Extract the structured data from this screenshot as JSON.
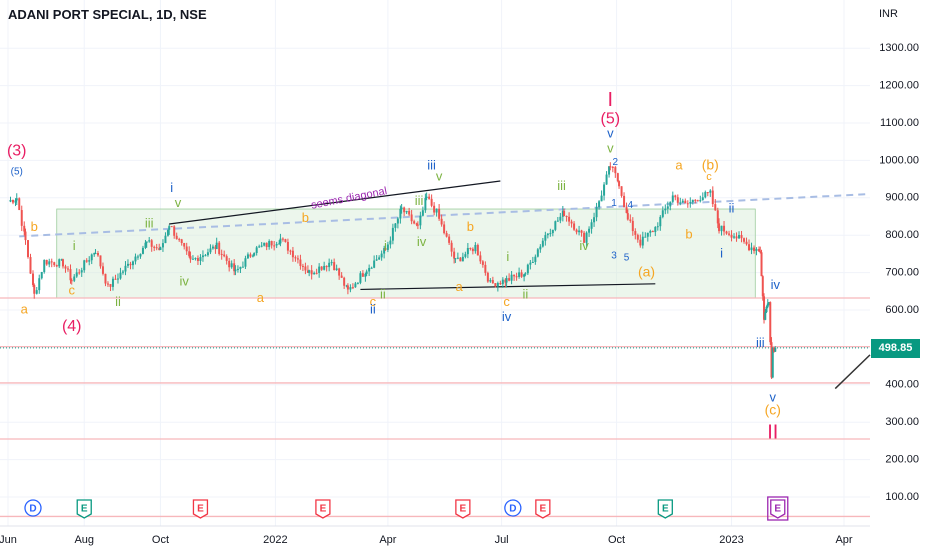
{
  "header": {
    "title": "ADANI PORT SPECIAL, 1D, NSE",
    "unit": "INR"
  },
  "last_price": "498.85",
  "colors": {
    "up": "#26a69a",
    "down": "#ef5350",
    "green_label": "#7cb342",
    "orange_label": "#f5a623",
    "crimson": "#e91e63",
    "blue": "#1e62c9",
    "purple": "#9c27b0",
    "range_fill": "#d5ecd5",
    "support": "#f7b7bb",
    "trend_dashed": "#a8bde4",
    "last_price": "#089981"
  },
  "chart_data": {
    "type": "candlestick",
    "y_tick_labels": [
      "1300.00",
      "1200.00",
      "1100.00",
      "1000.00",
      "900.00",
      "800.00",
      "700.00",
      "600.00",
      "500.00",
      "400.00",
      "300.00",
      "200.00",
      "100.00"
    ],
    "ylim": [
      40,
      1340
    ],
    "x_tick_labels": [
      "Jun",
      "Aug",
      "Oct",
      "2022",
      "Apr",
      "Jul",
      "Oct",
      "2023",
      "Apr"
    ],
    "support_levels": [
      632,
      502,
      405,
      255,
      48
    ],
    "last_price": 498.85,
    "price_anchors": [
      [
        "2021-06-01",
        890
      ],
      [
        "2021-06-08",
        900
      ],
      [
        "2021-06-15",
        785
      ],
      [
        "2021-06-22",
        640
      ],
      [
        "2021-06-30",
        730
      ],
      [
        "2021-07-15",
        725
      ],
      [
        "2021-07-22",
        680
      ],
      [
        "2021-08-10",
        760
      ],
      [
        "2021-08-20",
        660
      ],
      [
        "2021-09-05",
        720
      ],
      [
        "2021-09-20",
        780
      ],
      [
        "2021-10-01",
        760
      ],
      [
        "2021-10-08",
        830
      ],
      [
        "2021-10-25",
        730
      ],
      [
        "2021-11-15",
        770
      ],
      [
        "2021-11-30",
        700
      ],
      [
        "2021-12-15",
        760
      ],
      [
        "2022-01-05",
        790
      ],
      [
        "2022-01-28",
        700
      ],
      [
        "2022-02-15",
        730
      ],
      [
        "2022-02-28",
        650
      ],
      [
        "2022-03-15",
        710
      ],
      [
        "2022-03-30",
        760
      ],
      [
        "2022-04-12",
        870
      ],
      [
        "2022-04-25",
        820
      ],
      [
        "2022-05-02",
        900
      ],
      [
        "2022-05-10",
        860
      ],
      [
        "2022-05-25",
        730
      ],
      [
        "2022-06-10",
        770
      ],
      [
        "2022-06-22",
        670
      ],
      [
        "2022-07-05",
        680
      ],
      [
        "2022-07-20",
        700
      ],
      [
        "2022-08-05",
        800
      ],
      [
        "2022-08-20",
        860
      ],
      [
        "2022-09-05",
        790
      ],
      [
        "2022-09-15",
        870
      ],
      [
        "2022-09-26",
        985
      ],
      [
        "2022-10-03",
        940
      ],
      [
        "2022-10-10",
        840
      ],
      [
        "2022-10-20",
        780
      ],
      [
        "2022-11-01",
        820
      ],
      [
        "2022-11-15",
        905
      ],
      [
        "2022-11-25",
        880
      ],
      [
        "2022-12-05",
        900
      ],
      [
        "2022-12-15",
        910
      ],
      [
        "2022-12-22",
        820
      ],
      [
        "2023-01-03",
        800
      ],
      [
        "2023-01-15",
        770
      ],
      [
        "2023-01-24",
        760
      ],
      [
        "2023-01-25",
        690
      ],
      [
        "2023-01-27",
        580
      ],
      [
        "2023-01-31",
        630
      ],
      [
        "2023-02-02",
        420
      ],
      [
        "2023-02-03",
        500
      ],
      [
        "2023-02-05",
        498.85
      ]
    ],
    "annotations": [
      {
        "text": "(3)",
        "color": "crimson",
        "date": "2021-06-08",
        "price": 1025,
        "size": 16
      },
      {
        "text": "(5)",
        "color": "blue",
        "date": "2021-06-08",
        "price": 970,
        "size": 10
      },
      {
        "text": "b",
        "color": "orange",
        "date": "2021-06-22",
        "price": 820,
        "size": 13
      },
      {
        "text": "a",
        "color": "orange",
        "date": "2021-06-14",
        "price": 600,
        "size": 13
      },
      {
        "text": "i",
        "color": "green",
        "date": "2021-07-24",
        "price": 770,
        "size": 13
      },
      {
        "text": "c",
        "color": "orange",
        "date": "2021-07-22",
        "price": 650,
        "size": 13
      },
      {
        "text": "ii",
        "color": "green",
        "date": "2021-08-28",
        "price": 620,
        "size": 13
      },
      {
        "text": "(4)",
        "color": "crimson",
        "date": "2021-07-22",
        "price": 555,
        "size": 16
      },
      {
        "text": "iii",
        "color": "green",
        "date": "2021-09-22",
        "price": 830,
        "size": 13
      },
      {
        "text": "i",
        "color": "blue",
        "date": "2021-10-10",
        "price": 925,
        "size": 13
      },
      {
        "text": "v",
        "color": "green",
        "date": "2021-10-15",
        "price": 885,
        "size": 13
      },
      {
        "text": "iv",
        "color": "green",
        "date": "2021-10-20",
        "price": 675,
        "size": 13
      },
      {
        "text": "a",
        "color": "orange",
        "date": "2021-12-20",
        "price": 630,
        "size": 13
      },
      {
        "text": "b",
        "color": "orange",
        "date": "2022-01-25",
        "price": 845,
        "size": 13
      },
      {
        "text": "seems diagonal",
        "color": "purple",
        "date": "2022-03-01",
        "price": 898,
        "size": 11,
        "rotate": -11
      },
      {
        "text": "c",
        "color": "orange",
        "date": "2022-03-20",
        "price": 620,
        "size": 13
      },
      {
        "text": "ii",
        "color": "green",
        "date": "2022-03-28",
        "price": 640,
        "size": 13
      },
      {
        "text": "ii",
        "color": "blue",
        "date": "2022-03-20",
        "price": 600,
        "size": 13
      },
      {
        "text": "i",
        "color": "green",
        "date": "2022-03-30",
        "price": 770,
        "size": 13
      },
      {
        "text": "iii",
        "color": "blue",
        "date": "2022-05-06",
        "price": 985,
        "size": 13
      },
      {
        "text": "v",
        "color": "green",
        "date": "2022-05-12",
        "price": 955,
        "size": 13
      },
      {
        "text": "iii",
        "color": "green",
        "date": "2022-04-26",
        "price": 890,
        "size": 13
      },
      {
        "text": "iv",
        "color": "green",
        "date": "2022-04-28",
        "price": 780,
        "size": 13
      },
      {
        "text": "b",
        "color": "orange",
        "date": "2022-06-06",
        "price": 820,
        "size": 13
      },
      {
        "text": "a",
        "color": "orange",
        "date": "2022-05-28",
        "price": 660,
        "size": 13
      },
      {
        "text": "i",
        "color": "green",
        "date": "2022-07-06",
        "price": 740,
        "size": 13
      },
      {
        "text": "c",
        "color": "orange",
        "date": "2022-07-05",
        "price": 620,
        "size": 13
      },
      {
        "text": "ii",
        "color": "green",
        "date": "2022-07-20",
        "price": 640,
        "size": 13
      },
      {
        "text": "iv",
        "color": "blue",
        "date": "2022-07-05",
        "price": 580,
        "size": 13
      },
      {
        "text": "iii",
        "color": "green",
        "date": "2022-08-18",
        "price": 930,
        "size": 13
      },
      {
        "text": "iv",
        "color": "green",
        "date": "2022-09-05",
        "price": 770,
        "size": 13
      },
      {
        "text": "I",
        "color": "crimson",
        "date": "2022-09-26",
        "price": 1160,
        "size": 20
      },
      {
        "text": "(5)",
        "color": "crimson",
        "date": "2022-09-26",
        "price": 1110,
        "size": 16
      },
      {
        "text": "v",
        "color": "blue",
        "date": "2022-09-26",
        "price": 1070,
        "size": 13
      },
      {
        "text": "v",
        "color": "green",
        "date": "2022-09-26",
        "price": 1030,
        "size": 13
      },
      {
        "text": "2",
        "color": "blue",
        "date": "2022-09-30",
        "price": 995,
        "size": 10
      },
      {
        "text": "1",
        "color": "blue",
        "date": "2022-09-29",
        "price": 885,
        "size": 10
      },
      {
        "text": "4",
        "color": "blue",
        "date": "2022-10-12",
        "price": 880,
        "size": 10
      },
      {
        "text": "3",
        "color": "blue",
        "date": "2022-09-29",
        "price": 745,
        "size": 10
      },
      {
        "text": "5",
        "color": "blue",
        "date": "2022-10-09",
        "price": 740,
        "size": 10
      },
      {
        "text": "(a)",
        "color": "orange",
        "date": "2022-10-25",
        "price": 700,
        "size": 14
      },
      {
        "text": "a",
        "color": "orange",
        "date": "2022-11-20",
        "price": 985,
        "size": 13
      },
      {
        "text": "(b)",
        "color": "orange",
        "date": "2022-12-15",
        "price": 985,
        "size": 14
      },
      {
        "text": "c",
        "color": "orange",
        "date": "2022-12-14",
        "price": 955,
        "size": 11
      },
      {
        "text": "b",
        "color": "orange",
        "date": "2022-11-28",
        "price": 800,
        "size": 13
      },
      {
        "text": "ii",
        "color": "blue",
        "date": "2023-01-01",
        "price": 870,
        "size": 13
      },
      {
        "text": "i",
        "color": "blue",
        "date": "2022-12-24",
        "price": 750,
        "size": 13
      },
      {
        "text": "iv",
        "color": "blue",
        "date": "2023-02-05",
        "price": 665,
        "size": 13
      },
      {
        "text": "iii",
        "color": "blue",
        "date": "2023-01-24",
        "price": 510,
        "size": 13
      },
      {
        "text": "v",
        "color": "blue",
        "date": "2023-02-03",
        "price": 365,
        "size": 13
      },
      {
        "text": "(c)",
        "color": "orange",
        "date": "2023-02-03",
        "price": 330,
        "size": 14
      },
      {
        "text": "II",
        "color": "crimson",
        "date": "2023-02-03",
        "price": 270,
        "size": 20
      }
    ],
    "events": [
      {
        "letter": "D",
        "kind": "dividend",
        "date": "2021-06-21"
      },
      {
        "letter": "E",
        "kind": "earnings_green",
        "date": "2021-08-01"
      },
      {
        "letter": "E",
        "kind": "earnings_red",
        "date": "2021-11-02"
      },
      {
        "letter": "E",
        "kind": "earnings_red",
        "date": "2022-02-08"
      },
      {
        "letter": "E",
        "kind": "earnings_red",
        "date": "2022-05-31"
      },
      {
        "letter": "D",
        "kind": "dividend",
        "date": "2022-07-10"
      },
      {
        "letter": "E",
        "kind": "earnings_red",
        "date": "2022-08-03"
      },
      {
        "letter": "E",
        "kind": "earnings_green",
        "date": "2022-11-09"
      },
      {
        "letter": "E",
        "kind": "earnings_upcoming",
        "date": "2023-02-07"
      }
    ]
  }
}
